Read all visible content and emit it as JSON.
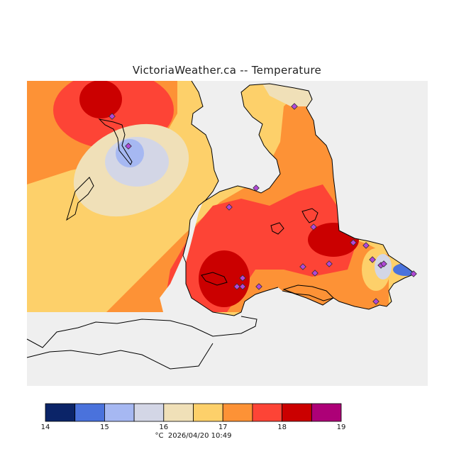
{
  "title": "VictoriaWeather.ca -- Temperature",
  "legend": {
    "unit": "°C",
    "timestamp": "2026/04/20 10:49",
    "ticks": [
      "14",
      "15",
      "16",
      "17",
      "18",
      "19"
    ],
    "bins": [
      {
        "from": 14.0,
        "to": 14.5,
        "color": "#0b2468"
      },
      {
        "from": 14.5,
        "to": 15.0,
        "color": "#4a72dc"
      },
      {
        "from": 15.0,
        "to": 15.5,
        "color": "#a6b8f2"
      },
      {
        "from": 15.5,
        "to": 16.0,
        "color": "#d3d6e6"
      },
      {
        "from": 16.0,
        "to": 16.5,
        "color": "#f0e0b8"
      },
      {
        "from": 16.5,
        "to": 17.0,
        "color": "#fdd06a"
      },
      {
        "from": 17.0,
        "to": 17.5,
        "color": "#fd9236"
      },
      {
        "from": 17.5,
        "to": 18.0,
        "color": "#fd4436"
      },
      {
        "from": 18.0,
        "to": 18.5,
        "color": "#cb0000"
      },
      {
        "from": 18.5,
        "to": 19.0,
        "color": "#ad0077"
      }
    ]
  },
  "colors": {
    "water": "#efefef",
    "land_outline": "#000000",
    "station_marker": "#b048d8"
  },
  "stations_shown": 20
}
